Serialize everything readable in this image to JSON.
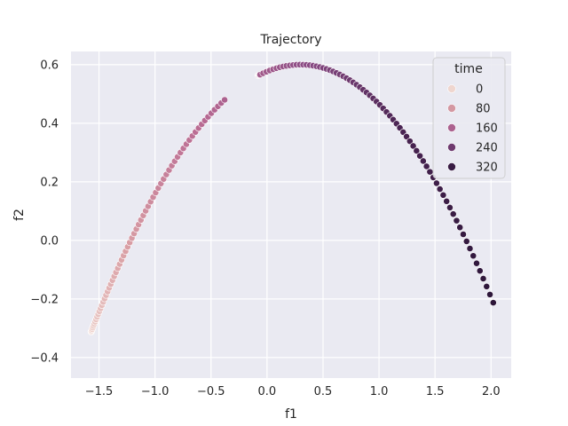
{
  "chart_data": {
    "type": "scatter",
    "title": "Trajectory",
    "xlabel": "f1",
    "ylabel": "f2",
    "xlim": [
      -1.75,
      2.18
    ],
    "ylim": [
      -0.47,
      0.645
    ],
    "xticks": [
      -1.5,
      -1.0,
      -0.5,
      0.0,
      0.5,
      1.0,
      1.5,
      2.0
    ],
    "xtick_labels": [
      "−1.5",
      "−1.0",
      "−0.5",
      "0.0",
      "0.5",
      "1.0",
      "1.5",
      "2.0"
    ],
    "yticks": [
      -0.4,
      -0.2,
      0.0,
      0.2,
      0.4,
      0.6
    ],
    "ytick_labels": [
      "−0.4",
      "−0.2",
      "0.0",
      "0.2",
      "0.4",
      "0.6"
    ],
    "grid": true,
    "legend": {
      "title": "time",
      "position": "top-right",
      "entries": [
        {
          "label": "0",
          "value": 0
        },
        {
          "label": "80",
          "value": 80
        },
        {
          "label": "160",
          "value": 160
        },
        {
          "label": "240",
          "value": 240
        },
        {
          "label": "320",
          "value": 320
        }
      ]
    },
    "color_scale": {
      "domain": [
        0,
        350
      ],
      "colors": [
        "#efd6cf",
        "#d99fa5",
        "#b96b93",
        "#8a4a84",
        "#4a2453",
        "#2d1639"
      ]
    },
    "background_color": "#eaeaf2",
    "grid_color": "#ffffff",
    "x_fn": [
      2.06,
      -0.003
    ],
    "points_meta": {
      "t_start": 0,
      "t_end": 350,
      "count": 140
    }
  }
}
